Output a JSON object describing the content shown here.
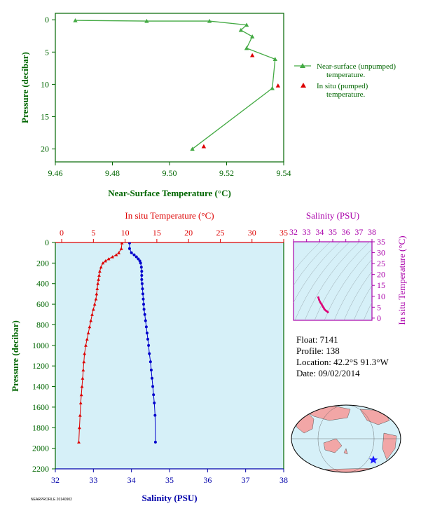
{
  "chart_data": [
    {
      "type": "line",
      "xlabel": "Near-Surface Temperature (°C)",
      "ylabel": "Pressure (decibar)",
      "xlim": [
        9.46,
        9.54
      ],
      "ylim": [
        22,
        -1
      ],
      "xticks": [
        "9.46",
        "9.48",
        "9.50",
        "9.52",
        "9.54"
      ],
      "yticks": [
        "0",
        "5",
        "10",
        "15",
        "20"
      ],
      "series": [
        {
          "name": "Near-surface (unpumped) temperature.",
          "color": "#44aa44",
          "marker": "triangle",
          "x": [
            9.467,
            9.492,
            9.514,
            9.527,
            9.525,
            9.529,
            9.527,
            9.537,
            9.536,
            9.508
          ],
          "y": [
            0.1,
            0.2,
            0.2,
            0.8,
            1.6,
            2.6,
            4.4,
            6.1,
            10.6,
            20.0
          ]
        },
        {
          "name": "In situ (pumped) temperature.",
          "color": "#dd0000",
          "marker": "triangle",
          "x": [
            9.529,
            9.538,
            9.512
          ],
          "y": [
            5.5,
            10.2,
            19.6
          ]
        }
      ],
      "legend": "right"
    },
    {
      "type": "line",
      "ylabel": "Pressure (decibar)",
      "ylim": [
        2200,
        0
      ],
      "yticks": [
        "0",
        "200",
        "400",
        "600",
        "800",
        "1000",
        "1200",
        "1400",
        "1600",
        "1800",
        "2000",
        "2200"
      ],
      "top_axis": {
        "label": "In situ Temperature (°C)",
        "lim": [
          -1,
          35
        ],
        "ticks": [
          "0",
          "5",
          "10",
          "15",
          "20",
          "25",
          "30",
          "35"
        ]
      },
      "bottom_axis": {
        "label": "Salinity (PSU)",
        "lim": [
          32,
          38
        ],
        "ticks": [
          "32",
          "33",
          "34",
          "35",
          "36",
          "37",
          "38"
        ]
      },
      "series": [
        {
          "name": "Temperature",
          "color": "#dd0000",
          "marker": "triangle",
          "axis": "top",
          "x": [
            9.5,
            9.4,
            9.0,
            8.6,
            8.0,
            7.4,
            6.9,
            6.5,
            6.2,
            6.0,
            5.9,
            5.8,
            5.7,
            5.6,
            5.5,
            5.4,
            5.2,
            5.0,
            4.8,
            4.6,
            4.4,
            4.2,
            4.0,
            3.8,
            3.6,
            3.5,
            3.4,
            3.3,
            3.2,
            3.1,
            3.0,
            2.9,
            2.8,
            2.7
          ],
          "y": [
            5,
            60,
            100,
            120,
            140,
            160,
            180,
            200,
            240,
            280,
            320,
            360,
            400,
            450,
            500,
            550,
            600,
            650,
            700,
            760,
            820,
            880,
            940,
            1000,
            1080,
            1160,
            1240,
            1320,
            1400,
            1480,
            1560,
            1680,
            1800,
            1940
          ]
        },
        {
          "name": "Salinity",
          "color": "#0000cc",
          "marker": "circle",
          "axis": "bottom",
          "x": [
            33.95,
            33.95,
            34.0,
            34.07,
            34.13,
            34.18,
            34.22,
            34.24,
            34.26,
            34.27,
            34.27,
            34.27,
            34.28,
            34.29,
            34.3,
            34.31,
            34.32,
            34.33,
            34.35,
            34.37,
            34.39,
            34.41,
            34.43,
            34.45,
            34.47,
            34.5,
            34.52,
            34.54,
            34.56,
            34.58,
            34.6,
            34.62,
            34.63
          ],
          "y": [
            5,
            60,
            100,
            120,
            140,
            160,
            180,
            200,
            240,
            280,
            320,
            360,
            400,
            450,
            500,
            550,
            600,
            650,
            700,
            760,
            820,
            880,
            940,
            1000,
            1080,
            1160,
            1240,
            1320,
            1400,
            1480,
            1560,
            1680,
            1940
          ]
        }
      ]
    },
    {
      "type": "scatter",
      "title": "Salinity (PSU)",
      "ylabel": "In situ Temperature (°C)",
      "xlim": [
        32,
        38
      ],
      "ylim": [
        -1,
        35
      ],
      "xticks": [
        "32",
        "33",
        "34",
        "35",
        "36",
        "37",
        "38"
      ],
      "yticks": [
        "0",
        "5",
        "10",
        "15",
        "20",
        "25",
        "30",
        "35"
      ],
      "series": [
        {
          "name": "T-S",
          "color": "#dd0077",
          "x": [
            33.9,
            33.95,
            34.05,
            34.15,
            34.2,
            34.25,
            34.3,
            34.35,
            34.4,
            34.5,
            34.58,
            34.63
          ],
          "y": [
            9.5,
            8.5,
            7.2,
            6.3,
            5.8,
            5.2,
            4.8,
            4.2,
            3.8,
            3.3,
            3.0,
            2.7
          ]
        }
      ]
    }
  ],
  "info": {
    "float": "Float: 7141",
    "profile": "Profile: 138",
    "location": "Location: 42.2°S 91.3°W",
    "date": "Date: 09/02/2014"
  },
  "footer_text": "NEARPROFILE 20140902"
}
